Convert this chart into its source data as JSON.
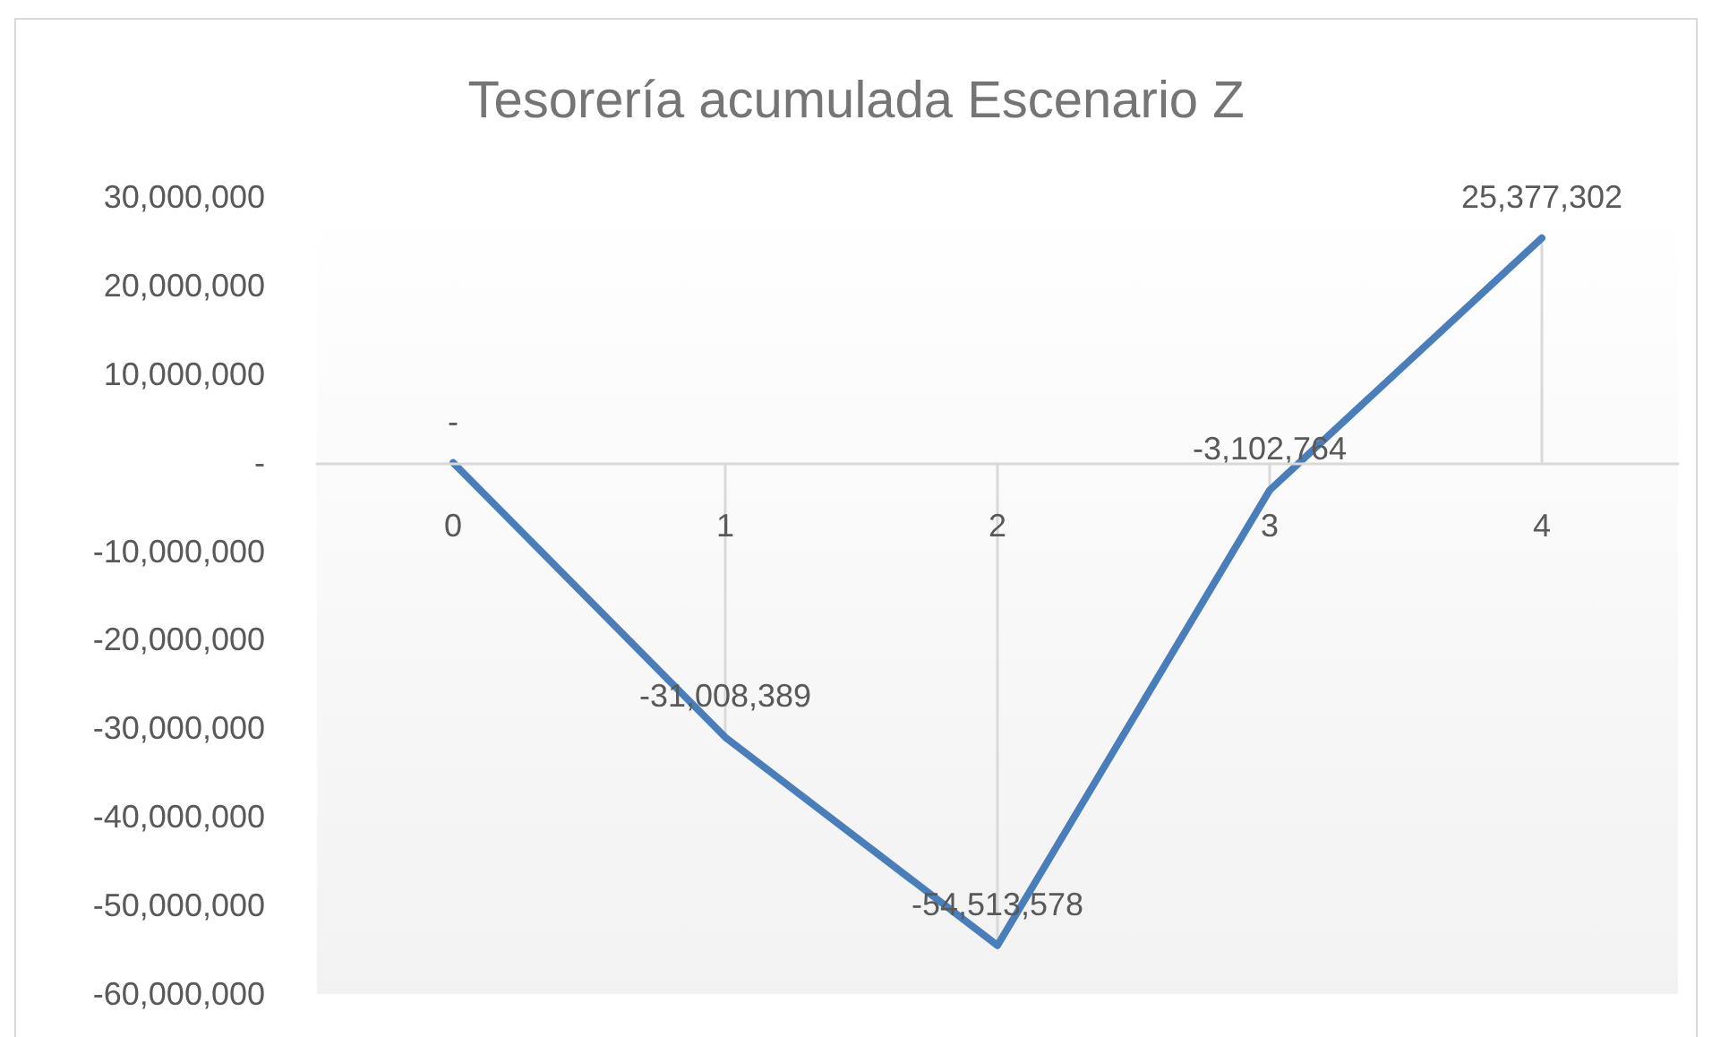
{
  "chart_data": {
    "type": "line",
    "title": "Tesorería acumulada Escenario Z",
    "categories": [
      "0",
      "1",
      "2",
      "3",
      "4"
    ],
    "series": [
      {
        "color": "#4a7ebb",
        "values": [
          0,
          -31008389,
          -54513578,
          -3102764,
          25377302
        ],
        "value_labels": [
          "-",
          "-31,008,389",
          "-54,513,578",
          "-3,102,764",
          "25,377,302"
        ]
      },
      {
        "type": "bar",
        "color": "#d9d9d9",
        "values": [
          0,
          -31008389,
          -54513578,
          -3102764,
          25377302
        ]
      }
    ],
    "ylim": [
      -60000000,
      30000000
    ],
    "yticks": [
      {
        "value": -60000000,
        "label": "-60,000,000"
      },
      {
        "value": -50000000,
        "label": "-50,000,000"
      },
      {
        "value": -40000000,
        "label": "-40,000,000"
      },
      {
        "value": -30000000,
        "label": "-30,000,000"
      },
      {
        "value": -20000000,
        "label": "-20,000,000"
      },
      {
        "value": -10000000,
        "label": "-10,000,000"
      },
      {
        "value": 0,
        "label": "-"
      },
      {
        "value": 10000000,
        "label": "10,000,000"
      },
      {
        "value": 20000000,
        "label": "20,000,000"
      },
      {
        "value": 30000000,
        "label": "30,000,000"
      }
    ],
    "grid": false,
    "marker": "none"
  }
}
